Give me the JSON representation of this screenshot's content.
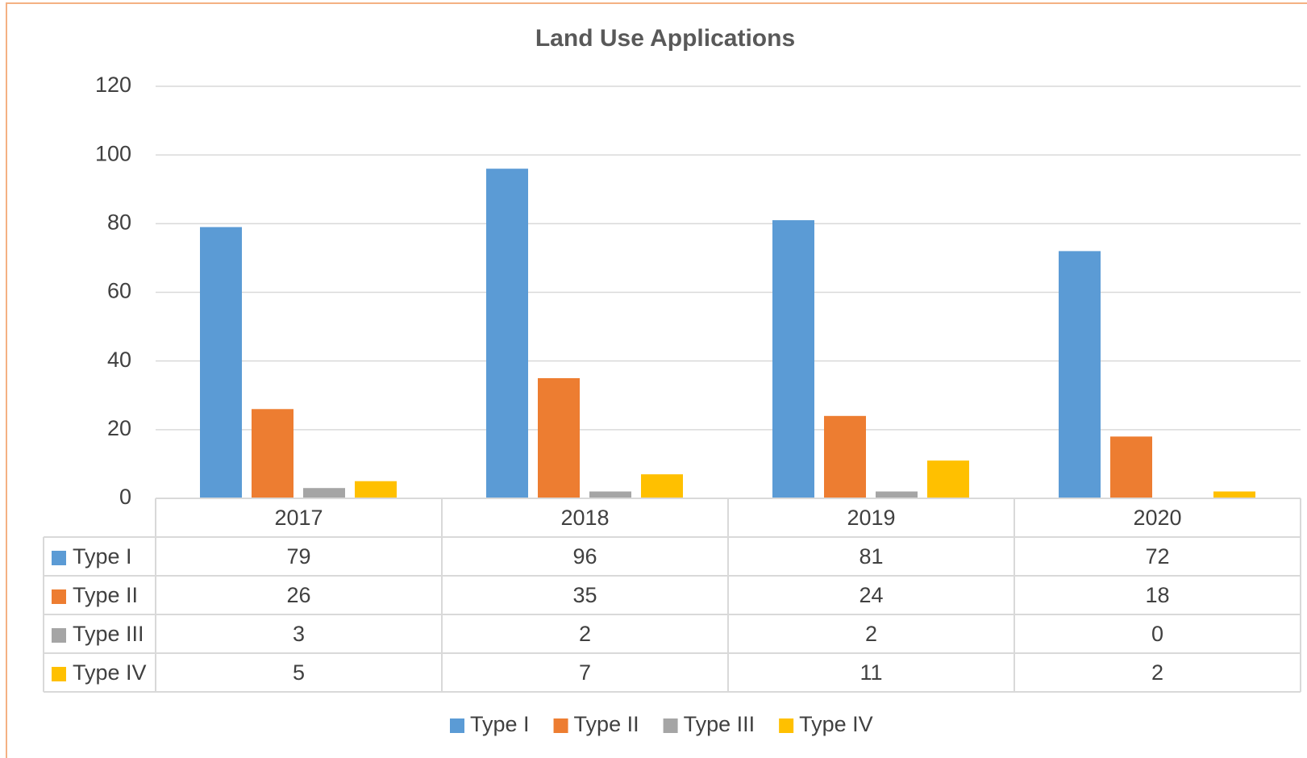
{
  "chart_data": {
    "type": "bar",
    "title": "Land Use Applications",
    "categories": [
      "2017",
      "2018",
      "2019",
      "2020"
    ],
    "series": [
      {
        "name": "Type I",
        "color": "#5b9bd5",
        "values": [
          79,
          96,
          81,
          72
        ]
      },
      {
        "name": "Type II",
        "color": "#ed7d31",
        "values": [
          26,
          35,
          24,
          18
        ]
      },
      {
        "name": "Type III",
        "color": "#a5a5a5",
        "values": [
          3,
          2,
          2,
          0
        ]
      },
      {
        "name": "Type IV",
        "color": "#ffc000",
        "values": [
          5,
          7,
          11,
          2
        ]
      }
    ],
    "ylim": [
      0,
      120
    ],
    "yticks": [
      0,
      20,
      40,
      60,
      80,
      100,
      120
    ],
    "grid": true,
    "data_table": true,
    "legend": "bottom"
  }
}
